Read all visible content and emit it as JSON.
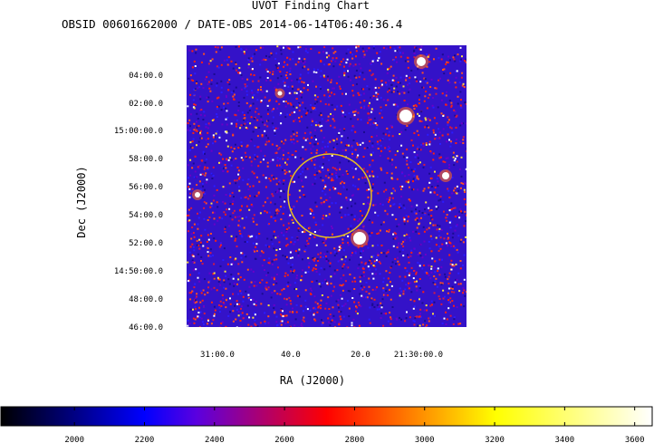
{
  "title": "UVOT Finding Chart",
  "subtitle": "OBSID 00601662000 / DATE-OBS 2014-06-14T06:40:36.4",
  "chart_data": {
    "type": "heatmap",
    "xlabel": "RA (J2000)",
    "ylabel": "Dec (J2000)",
    "x_ticks": [
      "31:00.0",
      "40.0",
      "20.0",
      "21:30:00.0"
    ],
    "y_ticks": [
      "04:00.0",
      "02:00.0",
      "15:00:00.0",
      "58:00.0",
      "56:00.0",
      "54:00.0",
      "52:00.0",
      "14:50:00.0",
      "48:00.0",
      "46:00.0"
    ],
    "colorbar": {
      "ticks": [
        "2000",
        "2200",
        "2400",
        "2600",
        "2800",
        "3000",
        "3200",
        "3400",
        "3600"
      ],
      "range": [
        1790,
        3650
      ],
      "colormap": [
        "#000000",
        "#0000ff",
        "#ff0000",
        "#ffff00",
        "#ffffff"
      ]
    },
    "region": {
      "shape": "circle",
      "color": "#e8c020"
    }
  }
}
